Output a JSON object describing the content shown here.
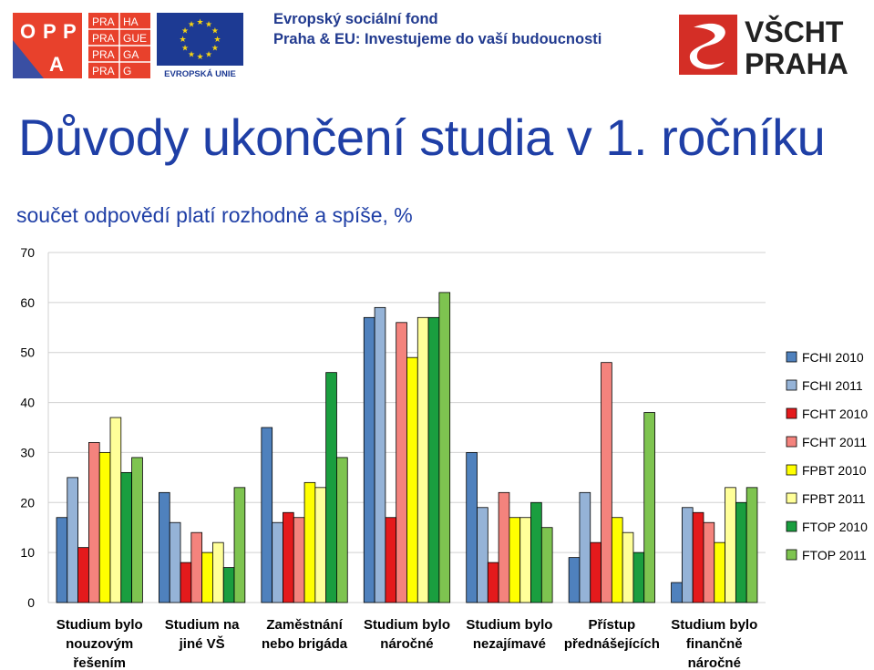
{
  "header": {
    "opp_logo_text": [
      "O",
      "P",
      "P",
      "A"
    ],
    "praha_logo_text": [
      "PRA",
      "HA",
      "PRA",
      "GUE",
      "PRA",
      "GA",
      "PRA",
      "G"
    ],
    "eu_logo_text": "EVROPSKÁ UNIE",
    "esf_line1": "Evropský sociální fond",
    "esf_line2": "Praha & EU: Investujeme do vaší budoucnosti",
    "vscht_logo_text": [
      "VŠCHT",
      "PRAHA"
    ]
  },
  "colors": {
    "title": "#1f3fa6",
    "esf_text": "#213a8f",
    "eu_blue": "#1d3a93",
    "eu_star": "#f6d512",
    "vscht_red": "#d42e26",
    "opp_red": "#e8412c",
    "opp_blue": "#3a4fa3"
  },
  "slide": {
    "title": "Důvody ukončení studia v 1. ročníku",
    "subtitle": "součet odpovědí platí rozhodně a spíše, %"
  },
  "chart_data": {
    "type": "bar",
    "ylim": [
      0,
      70
    ],
    "yticks": [
      0,
      10,
      20,
      30,
      40,
      50,
      60,
      70
    ],
    "grid": true,
    "legend_position": "right",
    "categories": [
      [
        "Studium bylo",
        "nouzovým",
        "řešením"
      ],
      [
        "Studium na",
        "jiné VŠ"
      ],
      [
        "Zaměstnání",
        "nebo brigáda"
      ],
      [
        "Studium bylo",
        "náročné"
      ],
      [
        "Studium bylo",
        "nezajímavé"
      ],
      [
        "Přístup",
        "přednášejících"
      ],
      [
        "Studium bylo",
        "finančně",
        "náročné"
      ]
    ],
    "series": [
      {
        "name": "FCHI 2010",
        "color": "#4f81bd",
        "values": [
          17,
          22,
          35,
          57,
          30,
          9,
          4
        ]
      },
      {
        "name": "FCHI 2011",
        "color": "#95b3d7",
        "values": [
          25,
          16,
          16,
          59,
          19,
          22,
          19
        ]
      },
      {
        "name": "FCHT 2010",
        "color": "#e41a1c",
        "values": [
          11,
          8,
          18,
          17,
          8,
          12,
          18
        ]
      },
      {
        "name": "FCHT 2011",
        "color": "#f4837d",
        "values": [
          32,
          14,
          17,
          56,
          22,
          48,
          16
        ]
      },
      {
        "name": "FPBT 2010",
        "color": "#ffff00",
        "values": [
          30,
          10,
          24,
          49,
          17,
          17,
          12
        ]
      },
      {
        "name": "FPBT 2011",
        "color": "#ffff99",
        "values": [
          37,
          12,
          23,
          57,
          17,
          14,
          23
        ]
      },
      {
        "name": "FTOP 2010",
        "color": "#1a9e3f",
        "values": [
          26,
          7,
          46,
          57,
          20,
          10,
          20
        ]
      },
      {
        "name": "FTOP 2011",
        "color": "#7ec450",
        "values": [
          29,
          23,
          29,
          62,
          15,
          38,
          23
        ]
      }
    ]
  }
}
